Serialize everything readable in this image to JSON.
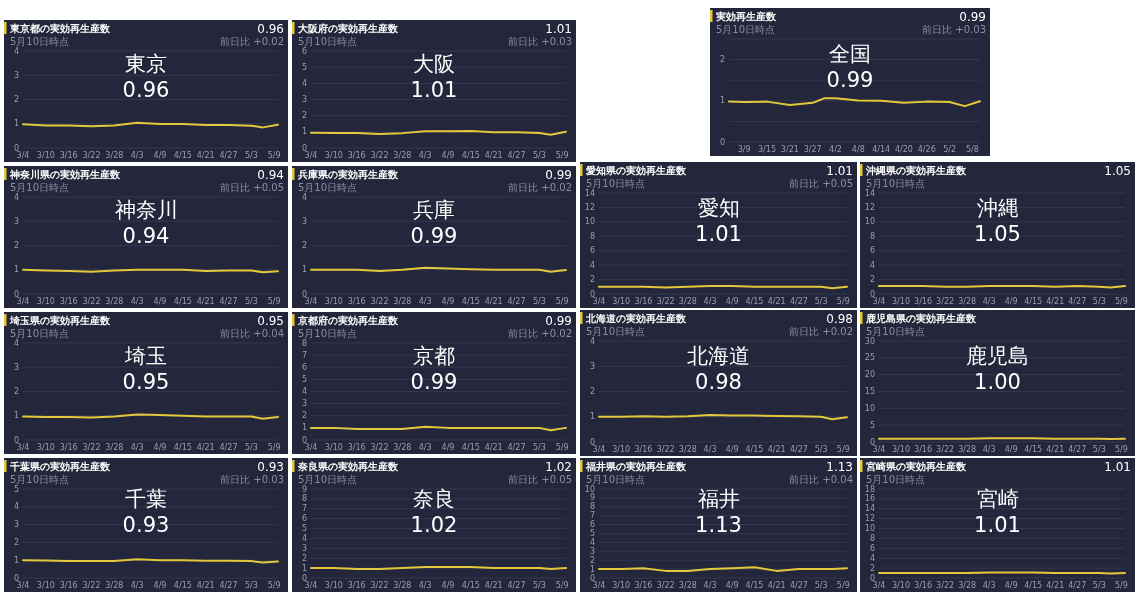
{
  "chart_data": [
    {
      "type": "line",
      "title": "東京都の実効再生産数",
      "subtitle": "5月10日時点",
      "annotations": [
        "東京",
        "0.96",
        "0.96",
        "前日比 +0.02"
      ],
      "x": [
        "--03-04",
        "--03-10",
        "--03-16",
        "--03-22",
        "--03-28",
        "--04-03",
        "--04-09",
        "--04-15",
        "--04-21",
        "--04-27",
        "--05-03",
        "--05-06",
        "--05-10"
      ],
      "xlim": [
        "--03-04",
        "--05-10"
      ],
      "xticks": [
        {
          "value": "--03-04",
          "label": "3/4"
        },
        {
          "value": "--03-10",
          "label": "3/10"
        },
        {
          "value": "--03-16",
          "label": "3/16"
        },
        {
          "value": "--03-22",
          "label": "3/22"
        },
        {
          "value": "--03-28",
          "label": "3/28"
        },
        {
          "value": "--04-03",
          "label": "4/3"
        },
        {
          "value": "--04-09",
          "label": "4/9"
        },
        {
          "value": "--04-15",
          "label": "4/15"
        },
        {
          "value": "--04-21",
          "label": "4/21"
        },
        {
          "value": "--04-27",
          "label": "4/27"
        },
        {
          "value": "--05-03",
          "label": "5/3"
        },
        {
          "value": "--05-09",
          "label": "5/9"
        }
      ],
      "ylim": [
        0,
        4
      ],
      "yticks": [
        0,
        1,
        2,
        3,
        4
      ],
      "grid": "y",
      "series": [
        {
          "color": "#e3c83c",
          "values": [
            0.98,
            0.93,
            0.93,
            0.9,
            0.93,
            1.04,
            0.99,
            0.99,
            0.95,
            0.95,
            0.92,
            0.85,
            0.96
          ]
        }
      ]
    },
    {
      "type": "line",
      "title": "大阪府の実効再生産数",
      "subtitle": "5月10日時点",
      "annotations": [
        "大阪",
        "1.01",
        "1.01",
        "前日比 +0.03"
      ],
      "x": [
        "--03-04",
        "--03-10",
        "--03-16",
        "--03-22",
        "--03-28",
        "--04-03",
        "--04-09",
        "--04-15",
        "--04-21",
        "--04-27",
        "--05-03",
        "--05-06",
        "--05-10"
      ],
      "xlim": [
        "--03-04",
        "--05-10"
      ],
      "xticks": [
        {
          "value": "--03-04",
          "label": "3/4"
        },
        {
          "value": "--03-10",
          "label": "3/10"
        },
        {
          "value": "--03-16",
          "label": "3/16"
        },
        {
          "value": "--03-22",
          "label": "3/22"
        },
        {
          "value": "--03-28",
          "label": "3/28"
        },
        {
          "value": "--04-03",
          "label": "4/3"
        },
        {
          "value": "--04-09",
          "label": "4/9"
        },
        {
          "value": "--04-15",
          "label": "4/15"
        },
        {
          "value": "--04-21",
          "label": "4/21"
        },
        {
          "value": "--04-27",
          "label": "4/27"
        },
        {
          "value": "--05-03",
          "label": "5/3"
        },
        {
          "value": "--05-09",
          "label": "5/9"
        }
      ],
      "ylim": [
        0,
        6
      ],
      "yticks": [
        0,
        1,
        2,
        3,
        4,
        5,
        6
      ],
      "grid": "y",
      "series": [
        {
          "color": "#e3c83c",
          "values": [
            0.95,
            0.93,
            0.93,
            0.87,
            0.92,
            1.04,
            1.03,
            1.05,
            0.98,
            0.97,
            0.93,
            0.82,
            1.01
          ]
        }
      ]
    },
    {
      "type": "line",
      "title": "実効再生産数",
      "subtitle": "5月10日時点",
      "annotations": [
        "全国",
        "0.99",
        "0.99",
        "前日比 +0.03"
      ],
      "x": [
        "--03-05",
        "--03-09",
        "--03-15",
        "--03-21",
        "--03-27",
        "--03-30",
        "--04-02",
        "--04-08",
        "--04-14",
        "--04-20",
        "--04-26",
        "--05-02",
        "--05-06",
        "--05-10"
      ],
      "xlim": [
        "--03-05",
        "--05-10"
      ],
      "xticks": [
        {
          "value": "--03-09",
          "label": "3/9"
        },
        {
          "value": "--03-15",
          "label": "3/15"
        },
        {
          "value": "--03-21",
          "label": "3/21"
        },
        {
          "value": "--03-27",
          "label": "3/27"
        },
        {
          "value": "--04-02",
          "label": "4/2"
        },
        {
          "value": "--04-08",
          "label": "4/8"
        },
        {
          "value": "--04-14",
          "label": "4/14"
        },
        {
          "value": "--04-20",
          "label": "4/20"
        },
        {
          "value": "--04-26",
          "label": "4/26"
        },
        {
          "value": "--05-02",
          "label": "5/2"
        },
        {
          "value": "--05-08",
          "label": "5/8"
        }
      ],
      "ylim": [
        0,
        2.5
      ],
      "yticks": [
        0,
        {
          "value": 0.5,
          "label": null
        },
        1,
        {
          "value": 1.5,
          "label": null
        },
        2,
        {
          "value": 2.5,
          "label": null
        }
      ],
      "grid": "y",
      "series": [
        {
          "color": "#e3c83c",
          "values": [
            0.98,
            0.97,
            0.98,
            0.9,
            0.95,
            1.06,
            1.06,
            1.01,
            1.0,
            0.95,
            0.98,
            0.97,
            0.87,
            0.99
          ]
        }
      ]
    },
    {
      "type": "line",
      "title": "神奈川県の実効再生産数",
      "subtitle": "5月10日時点",
      "annotations": [
        "神奈川",
        "0.94",
        "0.94",
        "前日比 +0.05"
      ],
      "x": [
        "--03-04",
        "--03-10",
        "--03-16",
        "--03-22",
        "--03-28",
        "--04-03",
        "--04-09",
        "--04-15",
        "--04-21",
        "--04-27",
        "--05-03",
        "--05-06",
        "--05-10"
      ],
      "xlim": [
        "--03-04",
        "--05-10"
      ],
      "xticks": [
        {
          "value": "--03-04",
          "label": "3/4"
        },
        {
          "value": "--03-10",
          "label": "3/10"
        },
        {
          "value": "--03-16",
          "label": "3/16"
        },
        {
          "value": "--03-22",
          "label": "3/22"
        },
        {
          "value": "--03-28",
          "label": "3/28"
        },
        {
          "value": "--04-03",
          "label": "4/3"
        },
        {
          "value": "--04-09",
          "label": "4/9"
        },
        {
          "value": "--04-15",
          "label": "4/15"
        },
        {
          "value": "--04-21",
          "label": "4/21"
        },
        {
          "value": "--04-27",
          "label": "4/27"
        },
        {
          "value": "--05-03",
          "label": "5/3"
        },
        {
          "value": "--05-09",
          "label": "5/9"
        }
      ],
      "ylim": [
        0,
        4
      ],
      "yticks": [
        0,
        1,
        2,
        3,
        4
      ],
      "grid": "y",
      "series": [
        {
          "color": "#e3c83c",
          "values": [
            1.0,
            0.97,
            0.95,
            0.92,
            0.97,
            1.0,
            1.0,
            1.0,
            0.95,
            0.97,
            0.97,
            0.9,
            0.94
          ]
        }
      ]
    },
    {
      "type": "line",
      "title": "兵庫県の実効再生産数",
      "subtitle": "5月10日時点",
      "annotations": [
        "兵庫",
        "0.99",
        "0.99",
        "前日比 +0.02"
      ],
      "x": [
        "--03-04",
        "--03-10",
        "--03-16",
        "--03-22",
        "--03-28",
        "--04-03",
        "--04-09",
        "--04-15",
        "--04-21",
        "--04-27",
        "--05-03",
        "--05-06",
        "--05-10"
      ],
      "xlim": [
        "--03-04",
        "--05-10"
      ],
      "xticks": [
        {
          "value": "--03-04",
          "label": "3/4"
        },
        {
          "value": "--03-10",
          "label": "3/10"
        },
        {
          "value": "--03-16",
          "label": "3/16"
        },
        {
          "value": "--03-22",
          "label": "3/22"
        },
        {
          "value": "--03-28",
          "label": "3/28"
        },
        {
          "value": "--04-03",
          "label": "4/3"
        },
        {
          "value": "--04-09",
          "label": "4/9"
        },
        {
          "value": "--04-15",
          "label": "4/15"
        },
        {
          "value": "--04-21",
          "label": "4/21"
        },
        {
          "value": "--04-27",
          "label": "4/27"
        },
        {
          "value": "--05-03",
          "label": "5/3"
        },
        {
          "value": "--05-09",
          "label": "5/9"
        }
      ],
      "ylim": [
        0,
        4
      ],
      "yticks": [
        0,
        1,
        2,
        3,
        4
      ],
      "grid": "y",
      "series": [
        {
          "color": "#e3c83c",
          "values": [
            1.0,
            1.0,
            1.0,
            0.95,
            1.0,
            1.08,
            1.05,
            1.02,
            1.0,
            1.0,
            1.0,
            0.92,
            0.99
          ]
        }
      ]
    },
    {
      "type": "line",
      "title": "愛知県の実効再生産数",
      "subtitle": "5月10日時点",
      "annotations": [
        "愛知",
        "1.01",
        "1.01",
        "前日比 +0.05"
      ],
      "x": [
        "--03-04",
        "--03-10",
        "--03-16",
        "--03-22",
        "--03-28",
        "--04-03",
        "--04-09",
        "--04-15",
        "--04-21",
        "--04-27",
        "--05-03",
        "--05-06",
        "--05-10"
      ],
      "xlim": [
        "--03-04",
        "--05-10"
      ],
      "xticks": [
        {
          "value": "--03-04",
          "label": "3/4"
        },
        {
          "value": "--03-10",
          "label": "3/10"
        },
        {
          "value": "--03-16",
          "label": "3/16"
        },
        {
          "value": "--03-22",
          "label": "3/22"
        },
        {
          "value": "--03-28",
          "label": "3/28"
        },
        {
          "value": "--04-03",
          "label": "4/3"
        },
        {
          "value": "--04-09",
          "label": "4/9"
        },
        {
          "value": "--04-15",
          "label": "4/15"
        },
        {
          "value": "--04-21",
          "label": "4/21"
        },
        {
          "value": "--04-27",
          "label": "4/27"
        },
        {
          "value": "--05-03",
          "label": "5/3"
        },
        {
          "value": "--05-09",
          "label": "5/9"
        }
      ],
      "ylim": [
        0,
        14
      ],
      "yticks": [
        0,
        2,
        4,
        6,
        8,
        10,
        12,
        14
      ],
      "grid": "y",
      "series": [
        {
          "color": "#e3c83c",
          "values": [
            1.0,
            1.0,
            1.0,
            0.9,
            1.0,
            1.1,
            1.1,
            1.0,
            1.0,
            1.0,
            1.0,
            0.8,
            1.0
          ]
        }
      ]
    },
    {
      "type": "line",
      "title": "沖縄県の実効再生産数",
      "subtitle": "5月10日時点",
      "annotations": [
        "沖縄",
        "1.05",
        "1.05"
      ],
      "x": [
        "--03-04",
        "--03-10",
        "--03-16",
        "--03-22",
        "--03-28",
        "--04-03",
        "--04-09",
        "--04-15",
        "--04-21",
        "--04-27",
        "--05-03",
        "--05-06",
        "--05-10"
      ],
      "xlim": [
        "--03-04",
        "--05-10"
      ],
      "xticks": [
        {
          "value": "--03-04",
          "label": "3/4"
        },
        {
          "value": "--03-10",
          "label": "3/10"
        },
        {
          "value": "--03-16",
          "label": "3/16"
        },
        {
          "value": "--03-22",
          "label": "3/22"
        },
        {
          "value": "--03-28",
          "label": "3/28"
        },
        {
          "value": "--04-03",
          "label": "4/3"
        },
        {
          "value": "--04-09",
          "label": "4/9"
        },
        {
          "value": "--04-15",
          "label": "4/15"
        },
        {
          "value": "--04-21",
          "label": "4/21"
        },
        {
          "value": "--04-27",
          "label": "4/27"
        },
        {
          "value": "--05-03",
          "label": "5/3"
        },
        {
          "value": "--05-09",
          "label": "5/9"
        }
      ],
      "ylim": [
        0,
        14
      ],
      "yticks": [
        0,
        2,
        4,
        6,
        8,
        10,
        12,
        14
      ],
      "grid": "y",
      "series": [
        {
          "color": "#e3c83c",
          "values": [
            1.1,
            1.1,
            1.1,
            1.0,
            1.0,
            1.1,
            1.1,
            1.1,
            1.0,
            1.1,
            1.0,
            0.9,
            1.1
          ]
        }
      ]
    },
    {
      "type": "line",
      "title": "埼玉県の実効再生産数",
      "subtitle": "5月10日時点",
      "annotations": [
        "埼玉",
        "0.95",
        "0.95",
        "前日比 +0.04"
      ],
      "x": [
        "--03-04",
        "--03-10",
        "--03-16",
        "--03-22",
        "--03-28",
        "--04-03",
        "--04-09",
        "--04-15",
        "--04-21",
        "--04-27",
        "--05-03",
        "--05-06",
        "--05-10"
      ],
      "xlim": [
        "--03-04",
        "--05-10"
      ],
      "xticks": [
        {
          "value": "--03-04",
          "label": "3/4"
        },
        {
          "value": "--03-10",
          "label": "3/10"
        },
        {
          "value": "--03-16",
          "label": "3/16"
        },
        {
          "value": "--03-22",
          "label": "3/22"
        },
        {
          "value": "--03-28",
          "label": "3/28"
        },
        {
          "value": "--04-03",
          "label": "4/3"
        },
        {
          "value": "--04-09",
          "label": "4/9"
        },
        {
          "value": "--04-15",
          "label": "4/15"
        },
        {
          "value": "--04-21",
          "label": "4/21"
        },
        {
          "value": "--04-27",
          "label": "4/27"
        },
        {
          "value": "--05-03",
          "label": "5/3"
        },
        {
          "value": "--05-09",
          "label": "5/9"
        }
      ],
      "ylim": [
        0,
        4
      ],
      "yticks": [
        0,
        1,
        2,
        3,
        4
      ],
      "grid": "y",
      "series": [
        {
          "color": "#e3c83c",
          "values": [
            0.97,
            0.95,
            0.95,
            0.93,
            0.97,
            1.05,
            1.03,
            1.0,
            0.97,
            0.97,
            0.97,
            0.88,
            0.95
          ]
        }
      ]
    },
    {
      "type": "line",
      "title": "京都府の実効再生産数",
      "subtitle": "5月10日時点",
      "annotations": [
        "京都",
        "0.99",
        "0.99",
        "前日比 +0.02"
      ],
      "x": [
        "--03-04",
        "--03-10",
        "--03-16",
        "--03-22",
        "--03-28",
        "--04-03",
        "--04-09",
        "--04-15",
        "--04-21",
        "--04-27",
        "--05-03",
        "--05-06",
        "--05-10"
      ],
      "xlim": [
        "--03-04",
        "--05-10"
      ],
      "xticks": [
        {
          "value": "--03-04",
          "label": "3/4"
        },
        {
          "value": "--03-10",
          "label": "3/10"
        },
        {
          "value": "--03-16",
          "label": "3/16"
        },
        {
          "value": "--03-22",
          "label": "3/22"
        },
        {
          "value": "--03-28",
          "label": "3/28"
        },
        {
          "value": "--04-03",
          "label": "4/3"
        },
        {
          "value": "--04-09",
          "label": "4/9"
        },
        {
          "value": "--04-15",
          "label": "4/15"
        },
        {
          "value": "--04-21",
          "label": "4/21"
        },
        {
          "value": "--04-27",
          "label": "4/27"
        },
        {
          "value": "--05-03",
          "label": "5/3"
        },
        {
          "value": "--05-09",
          "label": "5/9"
        }
      ],
      "ylim": [
        0,
        8
      ],
      "yticks": [
        0,
        1,
        2,
        3,
        4,
        5,
        6,
        7,
        8
      ],
      "grid": "y",
      "series": [
        {
          "color": "#e3c83c",
          "values": [
            1.0,
            1.0,
            0.9,
            0.9,
            0.9,
            1.1,
            1.0,
            1.0,
            1.0,
            1.0,
            1.0,
            0.8,
            1.0
          ]
        }
      ]
    },
    {
      "type": "line",
      "title": "北海道の実効再生産数",
      "subtitle": "5月10日時点",
      "annotations": [
        "北海道",
        "0.98",
        "0.98",
        "前日比 +0.02"
      ],
      "x": [
        "--03-04",
        "--03-10",
        "--03-16",
        "--03-22",
        "--03-28",
        "--04-03",
        "--04-09",
        "--04-15",
        "--04-21",
        "--04-27",
        "--05-03",
        "--05-06",
        "--05-10"
      ],
      "xlim": [
        "--03-04",
        "--05-10"
      ],
      "xticks": [
        {
          "value": "--03-04",
          "label": "3/4"
        },
        {
          "value": "--03-10",
          "label": "3/10"
        },
        {
          "value": "--03-16",
          "label": "3/16"
        },
        {
          "value": "--03-22",
          "label": "3/22"
        },
        {
          "value": "--03-28",
          "label": "3/28"
        },
        {
          "value": "--04-03",
          "label": "4/3"
        },
        {
          "value": "--04-09",
          "label": "4/9"
        },
        {
          "value": "--04-15",
          "label": "4/15"
        },
        {
          "value": "--04-21",
          "label": "4/21"
        },
        {
          "value": "--04-27",
          "label": "4/27"
        },
        {
          "value": "--05-03",
          "label": "5/3"
        },
        {
          "value": "--05-09",
          "label": "5/9"
        }
      ],
      "ylim": [
        0,
        4
      ],
      "yticks": [
        0,
        1,
        2,
        3,
        4
      ],
      "grid": "y",
      "series": [
        {
          "color": "#e3c83c",
          "values": [
            1.0,
            1.0,
            1.02,
            1.0,
            1.02,
            1.07,
            1.05,
            1.05,
            1.03,
            1.02,
            1.0,
            0.9,
            0.98
          ]
        }
      ]
    },
    {
      "type": "line",
      "title": "鹿児島県の実効再生産数",
      "subtitle": "5月10日時点",
      "annotations": [
        "鹿児島",
        "1.00"
      ],
      "x": [
        "--03-04",
        "--03-10",
        "--03-16",
        "--03-22",
        "--03-28",
        "--04-03",
        "--04-09",
        "--04-15",
        "--04-21",
        "--04-27",
        "--05-03",
        "--05-06",
        "--05-10"
      ],
      "xlim": [
        "--03-04",
        "--05-10"
      ],
      "xticks": [
        {
          "value": "--03-04",
          "label": "3/4"
        },
        {
          "value": "--03-10",
          "label": "3/10"
        },
        {
          "value": "--03-16",
          "label": "3/16"
        },
        {
          "value": "--03-22",
          "label": "3/22"
        },
        {
          "value": "--03-28",
          "label": "3/28"
        },
        {
          "value": "--04-03",
          "label": "4/3"
        },
        {
          "value": "--04-09",
          "label": "4/9"
        },
        {
          "value": "--04-15",
          "label": "4/15"
        },
        {
          "value": "--04-21",
          "label": "4/21"
        },
        {
          "value": "--04-27",
          "label": "4/27"
        },
        {
          "value": "--05-03",
          "label": "5/3"
        },
        {
          "value": "--05-09",
          "label": "5/9"
        }
      ],
      "ylim": [
        0,
        30
      ],
      "yticks": [
        0,
        5,
        10,
        15,
        20,
        25,
        30
      ],
      "grid": "y",
      "series": [
        {
          "color": "#e3c83c",
          "values": [
            1.0,
            1.0,
            1.0,
            1.0,
            1.0,
            1.1,
            1.1,
            1.1,
            1.0,
            1.0,
            1.0,
            0.9,
            1.0
          ]
        }
      ]
    },
    {
      "type": "line",
      "title": "千葉県の実効再生産数",
      "subtitle": "5月10日時点",
      "annotations": [
        "千葉",
        "0.93",
        "0.93",
        "前日比 +0.03"
      ],
      "x": [
        "--03-04",
        "--03-10",
        "--03-16",
        "--03-22",
        "--03-28",
        "--04-03",
        "--04-09",
        "--04-15",
        "--04-21",
        "--04-27",
        "--05-03",
        "--05-06",
        "--05-10"
      ],
      "xlim": [
        "--03-04",
        "--05-10"
      ],
      "xticks": [
        {
          "value": "--03-04",
          "label": "3/4"
        },
        {
          "value": "--03-10",
          "label": "3/10"
        },
        {
          "value": "--03-16",
          "label": "3/16"
        },
        {
          "value": "--03-22",
          "label": "3/22"
        },
        {
          "value": "--03-28",
          "label": "3/28"
        },
        {
          "value": "--04-03",
          "label": "4/3"
        },
        {
          "value": "--04-09",
          "label": "4/9"
        },
        {
          "value": "--04-15",
          "label": "4/15"
        },
        {
          "value": "--04-21",
          "label": "4/21"
        },
        {
          "value": "--04-27",
          "label": "4/27"
        },
        {
          "value": "--05-03",
          "label": "5/3"
        },
        {
          "value": "--05-09",
          "label": "5/9"
        }
      ],
      "ylim": [
        0,
        5
      ],
      "yticks": [
        0,
        1,
        2,
        3,
        4,
        5
      ],
      "grid": "y",
      "series": [
        {
          "color": "#e3c83c",
          "values": [
            1.0,
            0.98,
            0.95,
            0.95,
            0.95,
            1.05,
            1.0,
            1.0,
            0.97,
            0.97,
            0.95,
            0.87,
            0.93
          ]
        }
      ]
    },
    {
      "type": "line",
      "title": "奈良県の実効再生産数",
      "subtitle": "5月10日時点",
      "annotations": [
        "奈良",
        "1.02",
        "1.02",
        "前日比 +0.05"
      ],
      "x": [
        "--03-04",
        "--03-10",
        "--03-16",
        "--03-22",
        "--03-28",
        "--04-03",
        "--04-09",
        "--04-15",
        "--04-21",
        "--04-27",
        "--05-03",
        "--05-06",
        "--05-10"
      ],
      "xlim": [
        "--03-04",
        "--05-10"
      ],
      "xticks": [
        {
          "value": "--03-04",
          "label": "3/4"
        },
        {
          "value": "--03-10",
          "label": "3/10"
        },
        {
          "value": "--03-16",
          "label": "3/16"
        },
        {
          "value": "--03-22",
          "label": "3/22"
        },
        {
          "value": "--03-28",
          "label": "3/28"
        },
        {
          "value": "--04-03",
          "label": "4/3"
        },
        {
          "value": "--04-09",
          "label": "4/9"
        },
        {
          "value": "--04-15",
          "label": "4/15"
        },
        {
          "value": "--04-21",
          "label": "4/21"
        },
        {
          "value": "--04-27",
          "label": "4/27"
        },
        {
          "value": "--05-03",
          "label": "5/3"
        },
        {
          "value": "--05-09",
          "label": "5/9"
        }
      ],
      "ylim": [
        0,
        9
      ],
      "yticks": [
        0,
        1,
        2,
        3,
        4,
        5,
        6,
        7,
        8,
        9
      ],
      "grid": "y",
      "series": [
        {
          "color": "#e3c83c",
          "values": [
            1.0,
            1.0,
            0.9,
            0.9,
            1.0,
            1.1,
            1.1,
            1.1,
            1.0,
            1.0,
            1.0,
            0.9,
            1.0
          ]
        }
      ]
    },
    {
      "type": "line",
      "title": "福井県の実効再生産数",
      "subtitle": "5月10日時点",
      "annotations": [
        "福井",
        "1.13",
        "1.13",
        "前日比 +0.04"
      ],
      "x": [
        "--03-04",
        "--03-10",
        "--03-16",
        "--03-22",
        "--03-28",
        "--04-03",
        "--04-09",
        "--04-15",
        "--04-21",
        "--04-27",
        "--05-03",
        "--05-06",
        "--05-10"
      ],
      "xlim": [
        "--03-04",
        "--05-10"
      ],
      "xticks": [
        {
          "value": "--03-04",
          "label": "3/4"
        },
        {
          "value": "--03-10",
          "label": "3/10"
        },
        {
          "value": "--03-16",
          "label": "3/16"
        },
        {
          "value": "--03-22",
          "label": "3/22"
        },
        {
          "value": "--03-28",
          "label": "3/28"
        },
        {
          "value": "--04-03",
          "label": "4/3"
        },
        {
          "value": "--04-09",
          "label": "4/9"
        },
        {
          "value": "--04-15",
          "label": "4/15"
        },
        {
          "value": "--04-21",
          "label": "4/21"
        },
        {
          "value": "--04-27",
          "label": "4/27"
        },
        {
          "value": "--05-03",
          "label": "5/3"
        },
        {
          "value": "--05-09",
          "label": "5/9"
        }
      ],
      "ylim": [
        0,
        10
      ],
      "yticks": [
        0,
        1,
        2,
        3,
        4,
        5,
        6,
        7,
        8,
        9,
        10
      ],
      "grid": "y",
      "series": [
        {
          "color": "#e3c83c",
          "values": [
            1.0,
            1.0,
            1.1,
            0.8,
            0.8,
            1.0,
            1.1,
            1.2,
            0.8,
            1.0,
            1.0,
            1.0,
            1.1
          ]
        }
      ]
    },
    {
      "type": "line",
      "title": "宮崎県の実効再生産数",
      "subtitle": "5月10日時点",
      "annotations": [
        "宮崎",
        "1.01",
        "1.01"
      ],
      "x": [
        "--03-04",
        "--03-10",
        "--03-16",
        "--03-22",
        "--03-28",
        "--04-03",
        "--04-09",
        "--04-15",
        "--04-21",
        "--04-27",
        "--05-03",
        "--05-06",
        "--05-10"
      ],
      "xlim": [
        "--03-04",
        "--05-10"
      ],
      "xticks": [
        {
          "value": "--03-04",
          "label": "3/4"
        },
        {
          "value": "--03-10",
          "label": "3/10"
        },
        {
          "value": "--03-16",
          "label": "3/16"
        },
        {
          "value": "--03-22",
          "label": "3/22"
        },
        {
          "value": "--03-28",
          "label": "3/28"
        },
        {
          "value": "--04-03",
          "label": "4/3"
        },
        {
          "value": "--04-09",
          "label": "4/9"
        },
        {
          "value": "--04-15",
          "label": "4/15"
        },
        {
          "value": "--04-21",
          "label": "4/21"
        },
        {
          "value": "--04-27",
          "label": "4/27"
        },
        {
          "value": "--05-03",
          "label": "5/3"
        },
        {
          "value": "--05-09",
          "label": "5/9"
        }
      ],
      "ylim": [
        0,
        18
      ],
      "yticks": [
        0,
        2,
        4,
        6,
        8,
        10,
        12,
        14,
        16,
        18
      ],
      "grid": "y",
      "series": [
        {
          "color": "#e3c83c",
          "values": [
            1.0,
            1.0,
            1.0,
            1.0,
            1.0,
            1.1,
            1.1,
            1.1,
            1.0,
            1.0,
            1.0,
            0.9,
            1.0
          ]
        }
      ]
    }
  ]
}
